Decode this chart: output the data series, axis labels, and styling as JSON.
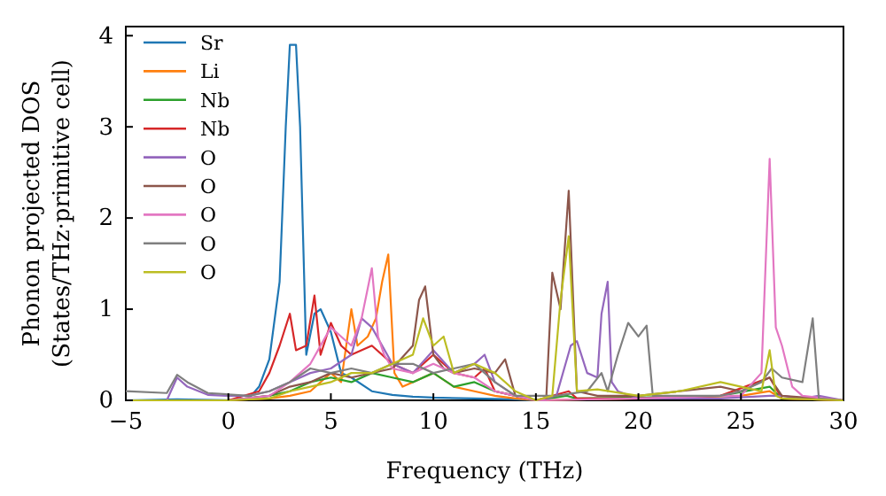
{
  "chart_data": {
    "type": "line",
    "xlabel": "Frequency (THz)",
    "ylabel": "Phonon projected DOS\n(States/THz·primitive cell)",
    "xlim": [
      -5,
      30
    ],
    "ylim": [
      0,
      4.1
    ],
    "xticks": [
      -5,
      0,
      5,
      10,
      15,
      20,
      25,
      30
    ],
    "yticks": [
      0,
      1,
      2,
      3,
      4
    ],
    "grid": false,
    "legend": "top left",
    "line_style": "solid",
    "marker": "none",
    "series": [
      {
        "name": "Sr",
        "color": "#1f77b4",
        "x": [
          -5,
          -2.5,
          0,
          1,
          1.5,
          2,
          2.5,
          2.8,
          3,
          3.3,
          3.5,
          3.8,
          4.2,
          4.5,
          5,
          5.5,
          6,
          7,
          8,
          9,
          10,
          12,
          14,
          15
        ],
        "values": [
          0,
          0.01,
          0,
          0.02,
          0.15,
          0.45,
          1.3,
          3.0,
          3.9,
          3.9,
          3.0,
          0.5,
          0.95,
          1.0,
          0.75,
          0.3,
          0.25,
          0.1,
          0.06,
          0.04,
          0.03,
          0.02,
          0.01,
          0
        ]
      },
      {
        "name": "Li",
        "color": "#ff7f0e",
        "x": [
          -5,
          0,
          2,
          3,
          4,
          5,
          5.5,
          6,
          6.3,
          6.8,
          7.2,
          7.5,
          7.8,
          8.1,
          8.5,
          9,
          10,
          11,
          12,
          13,
          14,
          15,
          20,
          25,
          26.4,
          27,
          30
        ],
        "values": [
          0,
          0,
          0.02,
          0.05,
          0.1,
          0.3,
          0.2,
          1.0,
          0.6,
          0.7,
          0.9,
          1.3,
          1.6,
          0.3,
          0.15,
          0.2,
          0.3,
          0.15,
          0.1,
          0.05,
          0.02,
          0,
          0.02,
          0.05,
          0.1,
          0.02,
          0
        ]
      },
      {
        "name": "Nb",
        "color": "#2ca02c",
        "x": [
          -5,
          0,
          2,
          3,
          4,
          5,
          6,
          7,
          8,
          9,
          10,
          11,
          12,
          13,
          14,
          15,
          16.5,
          17,
          20,
          24,
          26.4,
          27,
          30
        ],
        "values": [
          0,
          0,
          0.05,
          0.1,
          0.2,
          0.25,
          0.2,
          0.3,
          0.25,
          0.2,
          0.3,
          0.15,
          0.2,
          0.1,
          0.05,
          0,
          0.05,
          0.02,
          0.03,
          0.05,
          0.15,
          0.02,
          0
        ]
      },
      {
        "name": "Nb",
        "color": "#d62728",
        "x": [
          -5,
          0,
          1.5,
          2,
          2.5,
          3,
          3.3,
          3.8,
          4.2,
          4.5,
          5,
          5.5,
          6,
          7,
          8,
          9,
          10,
          11,
          12,
          12.5,
          13,
          14,
          15,
          16.6,
          17,
          20,
          24,
          26.4,
          27,
          30
        ],
        "values": [
          0,
          0,
          0.1,
          0.3,
          0.6,
          0.95,
          0.55,
          0.6,
          1.15,
          0.5,
          0.85,
          0.6,
          0.5,
          0.6,
          0.4,
          0.3,
          0.5,
          0.3,
          0.25,
          0.35,
          0.1,
          0.05,
          0,
          0.1,
          0.02,
          0.02,
          0.05,
          0.25,
          0.02,
          0
        ]
      },
      {
        "name": "O",
        "color": "#9467bd",
        "x": [
          -5,
          -3,
          -2.5,
          -2,
          -1,
          0,
          1,
          2,
          3,
          4,
          5,
          6,
          6.5,
          7,
          8,
          9,
          10,
          11,
          12,
          12.5,
          13,
          14,
          15,
          16,
          16.7,
          17,
          17.5,
          18,
          18.2,
          18.5,
          18.7,
          19,
          20,
          24,
          26.4,
          27,
          28,
          28.8,
          30
        ],
        "values": [
          0,
          0,
          0.25,
          0.15,
          0.06,
          0.05,
          0.05,
          0.1,
          0.2,
          0.3,
          0.35,
          0.5,
          0.9,
          0.8,
          0.4,
          0.3,
          0.55,
          0.3,
          0.4,
          0.5,
          0.2,
          0.05,
          0,
          0.05,
          0.6,
          0.65,
          0.3,
          0.25,
          0.95,
          1.3,
          0.2,
          0.1,
          0.02,
          0.02,
          0.05,
          0.05,
          0.02,
          0.05,
          0
        ]
      },
      {
        "name": "O",
        "color": "#8c564b",
        "x": [
          -5,
          0,
          2,
          3,
          4,
          5,
          6,
          7,
          8,
          9,
          9.3,
          9.6,
          10,
          10.5,
          11,
          12,
          13,
          13.5,
          14,
          15,
          15.5,
          15.8,
          16.2,
          16.6,
          17,
          18,
          20,
          22,
          24,
          25,
          26.4,
          27,
          30
        ],
        "values": [
          0,
          0,
          0.05,
          0.15,
          0.2,
          0.3,
          0.25,
          0.3,
          0.35,
          0.6,
          1.1,
          1.25,
          0.5,
          0.35,
          0.3,
          0.35,
          0.3,
          0.45,
          0.05,
          0,
          0,
          1.4,
          1.0,
          2.3,
          0.1,
          0.05,
          0.05,
          0.1,
          0.15,
          0.1,
          0.25,
          0.05,
          0
        ]
      },
      {
        "name": "O",
        "color": "#e377c2",
        "x": [
          -5,
          0,
          2,
          3,
          4,
          5,
          5.5,
          6,
          6.5,
          7,
          7.3,
          7.6,
          8,
          9,
          10,
          11,
          12,
          13,
          14,
          15,
          20,
          24,
          25,
          26,
          26.4,
          26.7,
          27,
          27.5,
          28,
          30
        ],
        "values": [
          0,
          0,
          0.05,
          0.2,
          0.4,
          0.8,
          0.7,
          0.6,
          0.9,
          1.45,
          0.7,
          0.5,
          0.35,
          0.3,
          0.4,
          0.3,
          0.25,
          0.1,
          0.05,
          0,
          0.02,
          0.05,
          0.05,
          0.3,
          2.65,
          0.8,
          0.6,
          0.15,
          0.05,
          0
        ]
      },
      {
        "name": "O",
        "color": "#7f7f7f",
        "x": [
          -5,
          -3,
          -2.5,
          -2,
          -1,
          1,
          2,
          3,
          4,
          5,
          6,
          7,
          8,
          9,
          10,
          11,
          12,
          13,
          14,
          16,
          17.5,
          18.2,
          18.5,
          19,
          19.5,
          20,
          20.4,
          20.7,
          24,
          25,
          26,
          26.5,
          27,
          28,
          28.5,
          28.8,
          30
        ],
        "values": [
          0.1,
          0.08,
          0.28,
          0.2,
          0.08,
          0.05,
          0.1,
          0.2,
          0.35,
          0.3,
          0.35,
          0.3,
          0.4,
          0.4,
          0.3,
          0.35,
          0.4,
          0.2,
          0.05,
          0.05,
          0.1,
          0.3,
          0.1,
          0.5,
          0.85,
          0.7,
          0.82,
          0.05,
          0.05,
          0.1,
          0.2,
          0.35,
          0.25,
          0.2,
          0.9,
          0.02,
          0
        ]
      },
      {
        "name": "O",
        "color": "#bcbd22",
        "x": [
          -5,
          0,
          2,
          3,
          4,
          5,
          6,
          7,
          8,
          9,
          9.5,
          10,
          10.5,
          11,
          12,
          13,
          14,
          15,
          15.8,
          16.2,
          16.6,
          17,
          18,
          20,
          22,
          24,
          25,
          26,
          26.4,
          26.7,
          27,
          30
        ],
        "values": [
          0,
          0,
          0.02,
          0.1,
          0.15,
          0.2,
          0.3,
          0.3,
          0.4,
          0.5,
          0.9,
          0.6,
          0.7,
          0.3,
          0.4,
          0.3,
          0.1,
          0,
          0.05,
          1.1,
          1.8,
          0.1,
          0.12,
          0.05,
          0.1,
          0.2,
          0.15,
          0.1,
          0.55,
          0.05,
          0.02,
          0
        ]
      }
    ]
  }
}
